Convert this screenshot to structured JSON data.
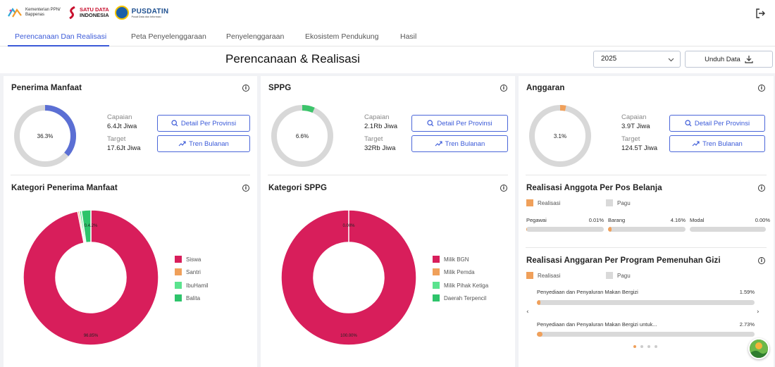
{
  "header": {
    "logos": {
      "bappenas": "Kementerian PPN/ Bappenas",
      "satudata_1": "SATU DATA",
      "satudata_2": "INDONESIA",
      "pusdatin": "PUSDATIN",
      "pusdatin_sub": "Pusat Data dan Informasi"
    }
  },
  "tabs": [
    {
      "label": "Perencanaan Dan Realisasi",
      "active": true
    },
    {
      "label": "Peta Penyelenggaraan"
    },
    {
      "label": "Penyelenggaraan"
    },
    {
      "label": "Ekosistem Pendukung"
    },
    {
      "label": "Hasil"
    }
  ],
  "page_title": "Perencanaan & Realisasi",
  "year_select": {
    "value": "2025"
  },
  "download_label": "Unduh Data",
  "cards": {
    "penerima": {
      "title": "Penerima Manfaat",
      "gauge_label": "36.3%",
      "gauge_fraction": 0.363,
      "gauge_color": "#5b6fd4",
      "capaian_label": "Capaian",
      "capaian_value": "6.4Jt Jiwa",
      "target_label": "Target",
      "target_value": "17.6Jt Jiwa",
      "detail_label": "Detail Per Provinsi",
      "tren_label": "Tren Bulanan"
    },
    "sppg": {
      "title": "SPPG",
      "gauge_label": "6.6%",
      "gauge_fraction": 0.066,
      "gauge_color": "#3cc46b",
      "capaian_label": "Capaian",
      "capaian_value": "2.1Rb Jiwa",
      "target_label": "Target",
      "target_value": "32Rb Jiwa",
      "detail_label": "Detail Per Provinsi",
      "tren_label": "Tren Bulanan"
    },
    "anggaran": {
      "title": "Anggaran",
      "gauge_label": "3.1%",
      "gauge_fraction": 0.031,
      "gauge_color": "#f0a05a",
      "capaian_label": "Capaian",
      "capaian_value": "3.9T Jiwa",
      "target_label": "Target",
      "target_value": "124.5T Jiwa",
      "detail_label": "Detail Per Provinsi",
      "tren_label": "Tren Bulanan"
    }
  },
  "kategori_penerima": {
    "title": "Kategori Penerima Manfaat",
    "top_label": "0.4.2%",
    "main_label": "96.85%",
    "legend": [
      "Siswa",
      "Santri",
      "IbuHamil",
      "Balita"
    ],
    "colors": [
      "#d81e5b",
      "#f0a05a",
      "#5be38e",
      "#2ec46b"
    ]
  },
  "kategori_sppg": {
    "title": "Kategori SPPG",
    "top_label": "0.00%",
    "main_label": "100.00%",
    "legend": [
      "Milik BGN",
      "Milik Pemda",
      "Milik Pihak Ketiga",
      "Daerah Terpencil"
    ],
    "colors": [
      "#d81e5b",
      "#f0a05a",
      "#5be38e",
      "#2ec46b"
    ]
  },
  "chart_data": [
    {
      "type": "pie",
      "title": "Kategori Penerima Manfaat",
      "categories": [
        "Siswa",
        "Santri",
        "IbuHamil",
        "Balita"
      ],
      "values": [
        96.85,
        0.4,
        0.5,
        2.25
      ]
    },
    {
      "type": "pie",
      "title": "Kategori SPPG",
      "categories": [
        "Milik BGN",
        "Milik Pemda",
        "Milik Pihak Ketiga",
        "Daerah Terpencil"
      ],
      "values": [
        100.0,
        0.0,
        0.0,
        0.0
      ]
    }
  ],
  "realisasi_pos": {
    "title": "Realisasi Anggota Per Pos Belanja",
    "legend_realisasi": "Realisasi",
    "legend_pagu": "Pagu",
    "items": [
      {
        "label": "Pegawai",
        "pct": "0.01%",
        "fraction": 0.0001
      },
      {
        "label": "Barang",
        "pct": "4.16%",
        "fraction": 0.0416
      },
      {
        "label": "Modal",
        "pct": "0.00%",
        "fraction": 0.0
      }
    ]
  },
  "realisasi_program": {
    "title": "Realisasi Anggaran Per Program Pemenuhan Gizi",
    "legend_realisasi": "Realisasi",
    "legend_pagu": "Pagu",
    "items": [
      {
        "label": "Penyediaan dan Penyaluran Makan Bergizi",
        "pct": "1.59%",
        "fraction": 0.0159
      },
      {
        "label": "Penyediaan dan Penyaluran Makan Bergizi untuk...",
        "pct": "2.73%",
        "fraction": 0.0273
      }
    ]
  },
  "colors": {
    "accent": "#3b5ad8",
    "realisasi": "#f0a05a",
    "pagu": "#d9d9d9"
  }
}
